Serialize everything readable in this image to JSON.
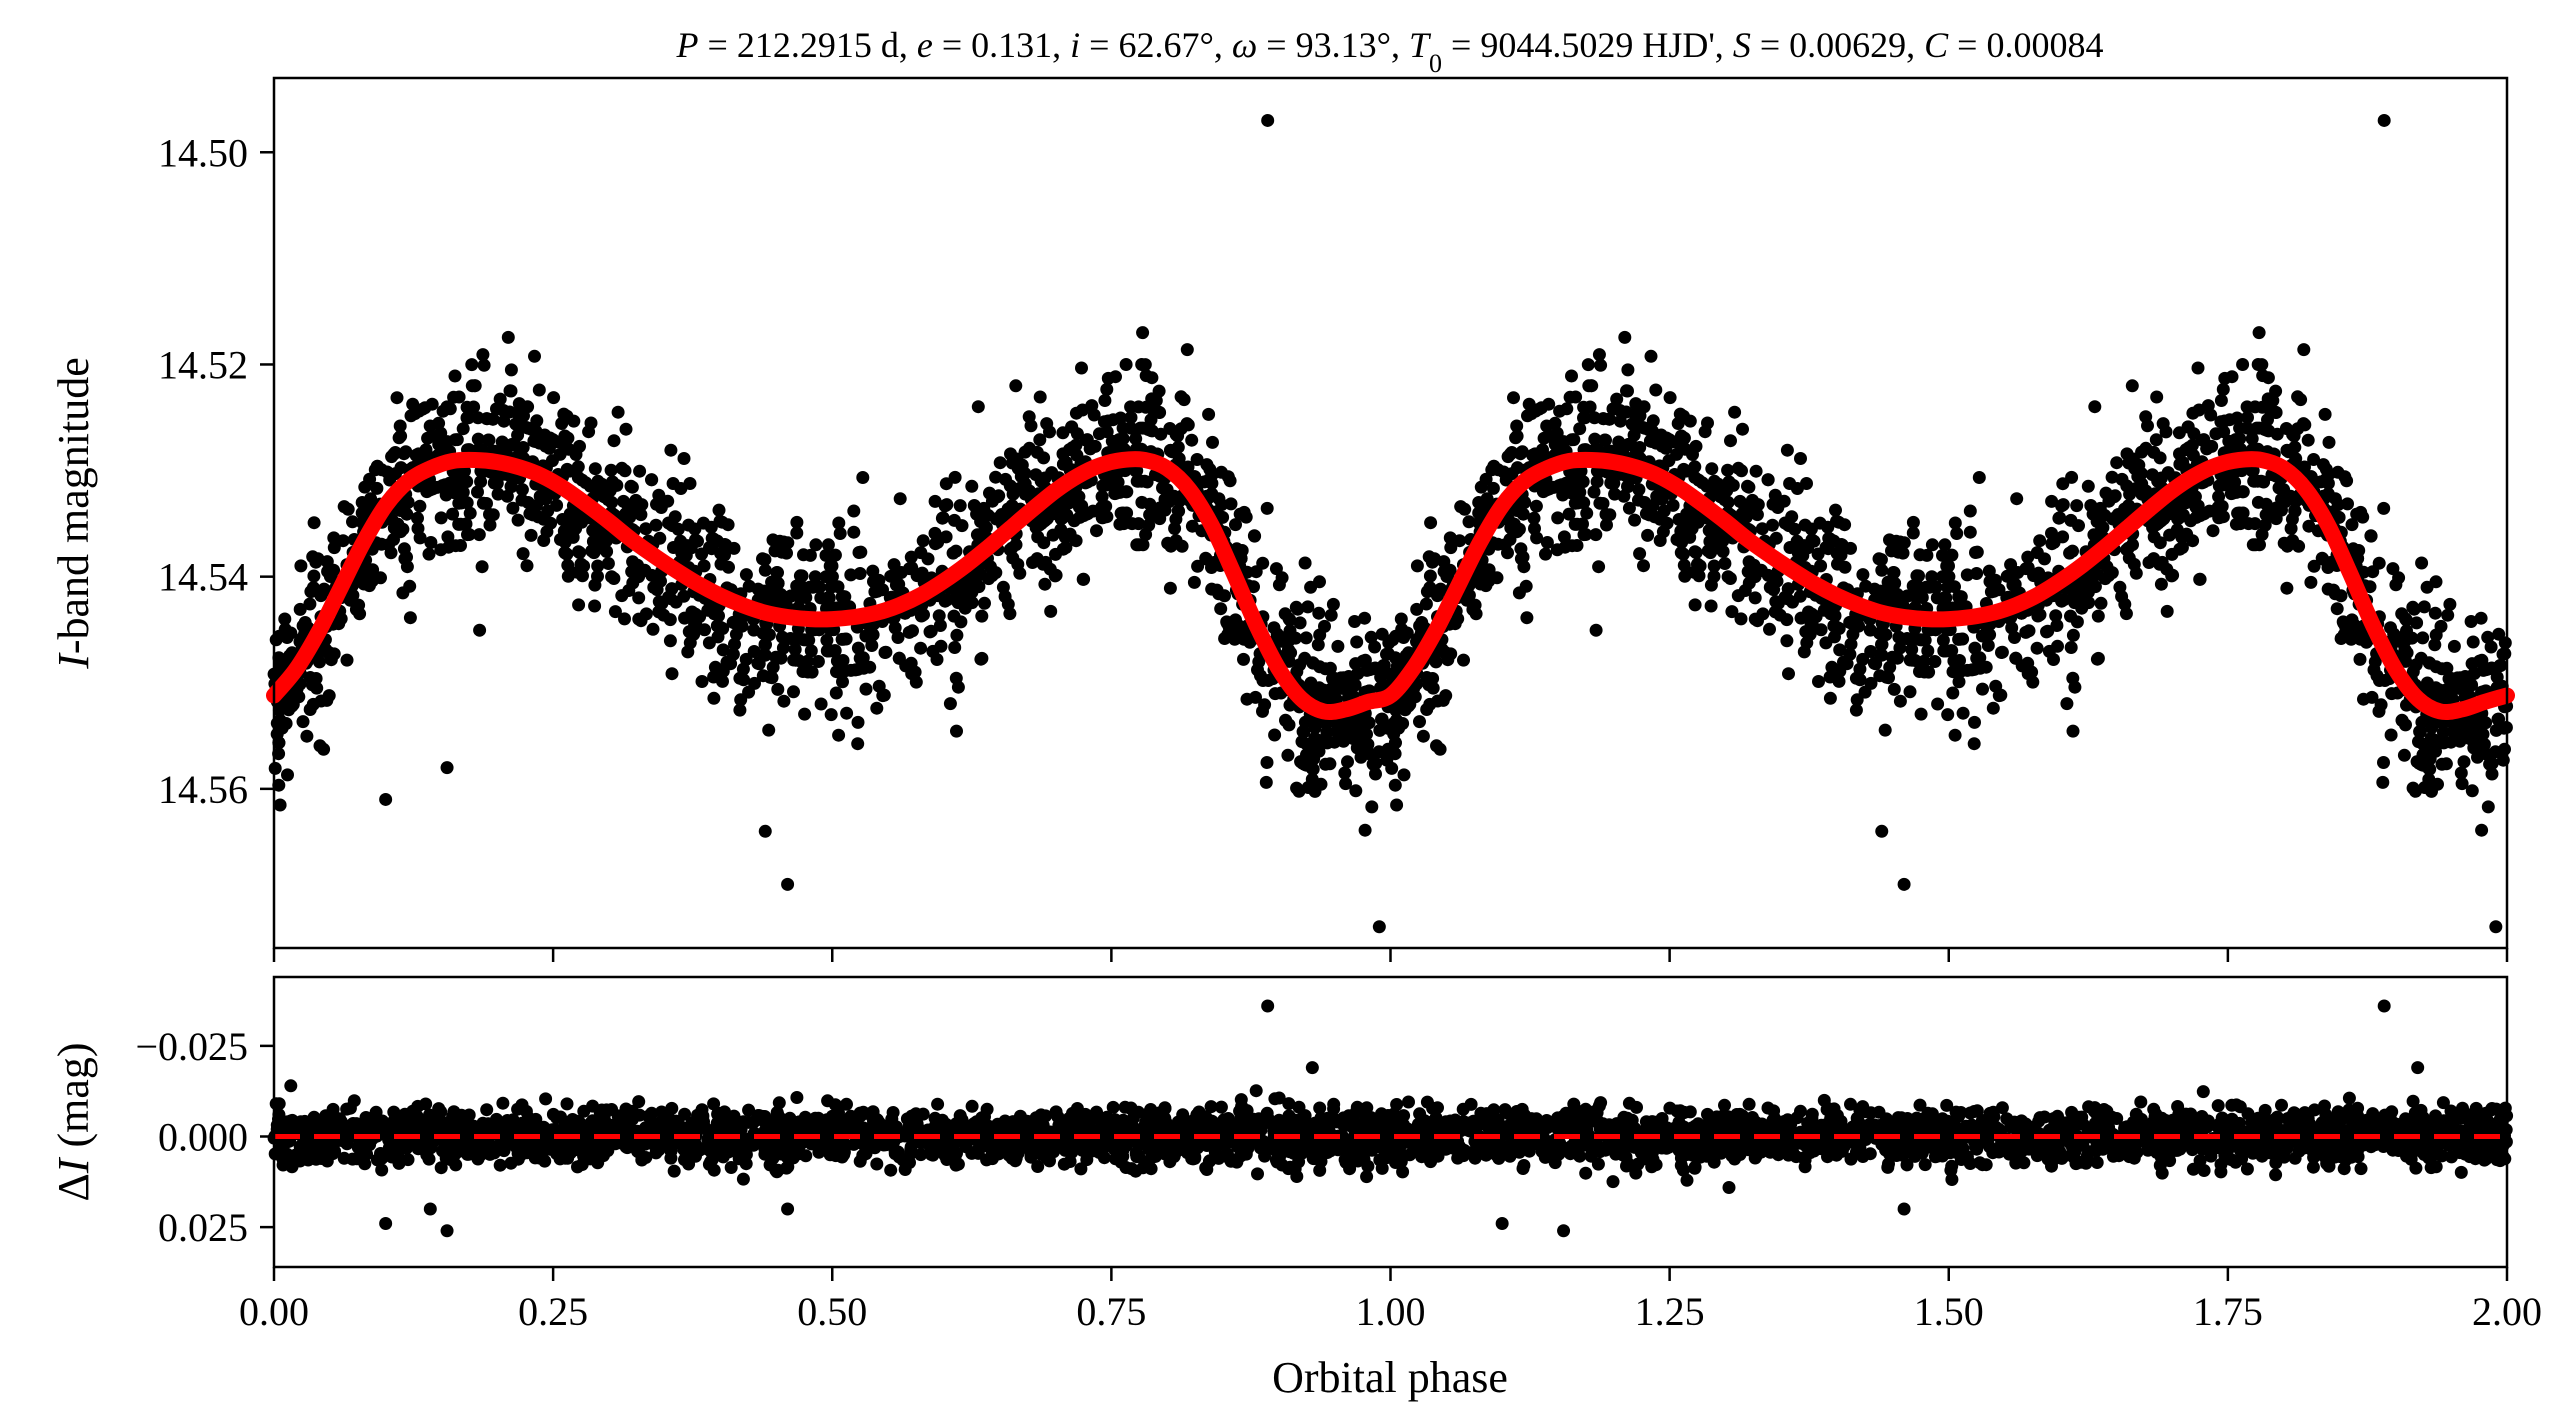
{
  "chart_data": [
    {
      "type": "scatter",
      "title": "P = 212.2915 d, e = 0.131, i = 62.67°, ω = 93.13°, T₀ = 9044.5029 HJD', S = 0.00629, C = 0.00084",
      "title_parts": [
        {
          "t": "P",
          "i": true
        },
        {
          "t": " = 212.2915 d, "
        },
        {
          "t": "e",
          "i": true
        },
        {
          "t": " = 0.131, "
        },
        {
          "t": "i",
          "i": true
        },
        {
          "t": " = 62.67°, "
        },
        {
          "t": "ω",
          "i": true
        },
        {
          "t": " = 93.13°, "
        },
        {
          "t": "T",
          "i": true
        },
        {
          "t": "0",
          "sub": true
        },
        {
          "t": " = 9044.5029 HJD', "
        },
        {
          "t": "S",
          "i": true
        },
        {
          "t": " = 0.00629, "
        },
        {
          "t": "C",
          "i": true
        },
        {
          "t": " = 0.00084"
        }
      ],
      "xlabel": "",
      "ylabel": "I-band magnitude",
      "ylabel_parts": [
        {
          "t": "I",
          "i": true
        },
        {
          "t": "-band magnitude"
        }
      ],
      "xlim": [
        0.0,
        2.0
      ],
      "ylim": [
        14.575,
        14.493
      ],
      "y_inverted": true,
      "yticks": [
        14.5,
        14.52,
        14.54,
        14.56
      ],
      "ytick_labels": [
        "14.50",
        "14.52",
        "14.54",
        "14.56"
      ],
      "grid": false,
      "series": [
        {
          "name": "",
          "kind": "observations",
          "color": "#000000",
          "phase_x": [
            0.0,
            0.02,
            0.04,
            0.06,
            0.08,
            0.1,
            0.12,
            0.14,
            0.16,
            0.18,
            0.2,
            0.22,
            0.24,
            0.26,
            0.28,
            0.3,
            0.32,
            0.34,
            0.36,
            0.38,
            0.4,
            0.42,
            0.44,
            0.46,
            0.48,
            0.5,
            0.52,
            0.54,
            0.56,
            0.58,
            0.6,
            0.62,
            0.64,
            0.66,
            0.68,
            0.7,
            0.72,
            0.74,
            0.76,
            0.78,
            0.8,
            0.82,
            0.84,
            0.86,
            0.88,
            0.9,
            0.92,
            0.94,
            0.96,
            0.98,
            1.0,
            1.02,
            1.04,
            1.06,
            1.08,
            1.1,
            1.12,
            1.14,
            1.16,
            1.18,
            1.2,
            1.22,
            1.24,
            1.26,
            1.28,
            1.3,
            1.32,
            1.34,
            1.36,
            1.38,
            1.4,
            1.42,
            1.44,
            1.46,
            1.48,
            1.5,
            1.52,
            1.54,
            1.56,
            1.58,
            1.6,
            1.62,
            1.64,
            1.66,
            1.68,
            1.7,
            1.72,
            1.74,
            1.76,
            1.78,
            1.8,
            1.82,
            1.84,
            1.86,
            1.88,
            1.9,
            1.92,
            1.94,
            1.96,
            1.98,
            2.0
          ],
          "spread": 0.007,
          "outliers": [
            {
              "x": 0.89,
              "y": 14.497
            },
            {
              "x": 1.89,
              "y": 14.497
            },
            {
              "x": 0.155,
              "y": 14.524
            },
            {
              "x": 0.155,
              "y": 14.558
            },
            {
              "x": 0.1,
              "y": 14.561
            },
            {
              "x": 0.99,
              "y": 14.573
            },
            {
              "x": 1.99,
              "y": 14.573
            },
            {
              "x": 0.44,
              "y": 14.564
            },
            {
              "x": 1.44,
              "y": 14.564
            },
            {
              "x": 0.46,
              "y": 14.569
            },
            {
              "x": 1.46,
              "y": 14.569
            }
          ]
        },
        {
          "name": "",
          "kind": "model",
          "color": "#ff0000",
          "x": [
            0.0,
            0.02,
            0.04,
            0.06,
            0.08,
            0.1,
            0.12,
            0.14,
            0.16,
            0.18,
            0.2,
            0.22,
            0.24,
            0.26,
            0.28,
            0.3,
            0.32,
            0.34,
            0.36,
            0.38,
            0.4,
            0.42,
            0.44,
            0.46,
            0.48,
            0.5,
            0.52,
            0.54,
            0.56,
            0.58,
            0.6,
            0.62,
            0.64,
            0.66,
            0.68,
            0.7,
            0.72,
            0.74,
            0.76,
            0.78,
            0.8,
            0.82,
            0.84,
            0.86,
            0.88,
            0.9,
            0.92,
            0.94,
            0.96,
            0.98,
            1.0,
            1.02,
            1.04,
            1.06,
            1.08,
            1.1,
            1.12,
            1.14,
            1.16,
            1.18,
            1.2,
            1.22,
            1.24,
            1.26,
            1.28,
            1.3,
            1.32,
            1.34,
            1.36,
            1.38,
            1.4,
            1.42,
            1.44,
            1.46,
            1.48,
            1.5,
            1.52,
            1.54,
            1.56,
            1.58,
            1.6,
            1.62,
            1.64,
            1.66,
            1.68,
            1.7,
            1.72,
            1.74,
            1.76,
            1.78,
            1.8,
            1.82,
            1.84,
            1.86,
            1.88,
            1.9,
            1.92,
            1.94,
            1.96,
            1.98,
            2.0
          ],
          "y": [
            14.5512,
            14.5487,
            14.5452,
            14.541,
            14.5368,
            14.5333,
            14.531,
            14.5298,
            14.5291,
            14.529,
            14.5292,
            14.5297,
            14.5305,
            14.5317,
            14.5332,
            14.5348,
            14.5365,
            14.538,
            14.5394,
            14.5407,
            14.5418,
            14.5427,
            14.5434,
            14.5438,
            14.544,
            14.544,
            14.5438,
            14.5434,
            14.5427,
            14.5417,
            14.5404,
            14.5389,
            14.5372,
            14.5354,
            14.5336,
            14.5319,
            14.5305,
            14.5295,
            14.529,
            14.529,
            14.5298,
            14.5318,
            14.5352,
            14.5398,
            14.5446,
            14.5487,
            14.5515,
            14.5527,
            14.5525,
            14.5518,
            14.5512,
            14.5487,
            14.5452,
            14.541,
            14.5368,
            14.5333,
            14.531,
            14.5298,
            14.5291,
            14.529,
            14.5292,
            14.5297,
            14.5305,
            14.5317,
            14.5332,
            14.5348,
            14.5365,
            14.538,
            14.5394,
            14.5407,
            14.5418,
            14.5427,
            14.5434,
            14.5438,
            14.544,
            14.544,
            14.5438,
            14.5434,
            14.5427,
            14.5417,
            14.5404,
            14.5389,
            14.5372,
            14.5354,
            14.5336,
            14.5319,
            14.5305,
            14.5295,
            14.529,
            14.529,
            14.5298,
            14.5318,
            14.5352,
            14.5398,
            14.5446,
            14.5487,
            14.5515,
            14.5527,
            14.5525,
            14.5518,
            14.5512
          ]
        }
      ]
    },
    {
      "type": "scatter",
      "title": "",
      "xlabel": "Orbital phase",
      "ylabel": "ΔI (mag)",
      "ylabel_parts": [
        {
          "t": "Δ"
        },
        {
          "t": "I",
          "i": true
        },
        {
          "t": " (mag)"
        }
      ],
      "xlim": [
        0.0,
        2.0
      ],
      "ylim": [
        0.036,
        -0.044
      ],
      "y_inverted": true,
      "xticks": [
        0.0,
        0.25,
        0.5,
        0.75,
        1.0,
        1.25,
        1.5,
        1.75,
        2.0
      ],
      "xtick_labels": [
        "0.00",
        "0.25",
        "0.50",
        "0.75",
        "1.00",
        "1.25",
        "1.50",
        "1.75",
        "2.00"
      ],
      "yticks": [
        -0.025,
        0.0,
        0.025
      ],
      "ytick_labels": [
        "−0.025",
        "0.000",
        "0.025"
      ],
      "grid": false,
      "series": [
        {
          "name": "",
          "kind": "residuals",
          "color": "#000000",
          "spread": 0.006,
          "outliers": [
            {
              "x": 0.89,
              "y": -0.036
            },
            {
              "x": 1.89,
              "y": -0.036
            },
            {
              "x": 0.155,
              "y": 0.026
            },
            {
              "x": 1.155,
              "y": 0.026
            },
            {
              "x": 0.1,
              "y": 0.024
            },
            {
              "x": 1.1,
              "y": 0.024
            },
            {
              "x": 0.14,
              "y": 0.02
            },
            {
              "x": 0.46,
              "y": 0.02
            },
            {
              "x": 1.46,
              "y": 0.02
            },
            {
              "x": 1.92,
              "y": -0.019
            },
            {
              "x": 0.93,
              "y": -0.019
            }
          ]
        },
        {
          "name": "",
          "kind": "zero-line",
          "color": "#ff0000",
          "y": 0.0
        }
      ]
    }
  ]
}
